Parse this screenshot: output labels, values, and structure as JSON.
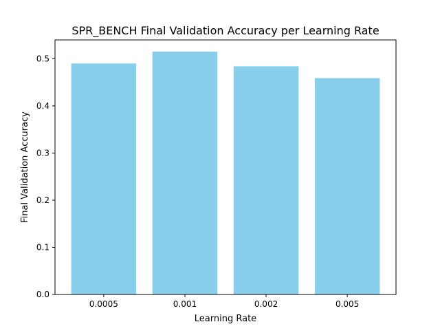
{
  "chart_data": {
    "type": "bar",
    "title": "SPR_BENCH Final Validation Accuracy per Learning Rate",
    "xlabel": "Learning Rate",
    "ylabel": "Final Validation Accuracy",
    "categories": [
      "0.0005",
      "0.001",
      "0.002",
      "0.005"
    ],
    "values": [
      0.49,
      0.515,
      0.484,
      0.459
    ],
    "ylim": [
      0,
      0.54
    ],
    "yticks": [
      0.0,
      0.1,
      0.2,
      0.3,
      0.4,
      0.5
    ],
    "ytick_labels": [
      "0.0",
      "0.1",
      "0.2",
      "0.3",
      "0.4",
      "0.5"
    ],
    "grid": false,
    "bar_color": "#87ceeb"
  }
}
